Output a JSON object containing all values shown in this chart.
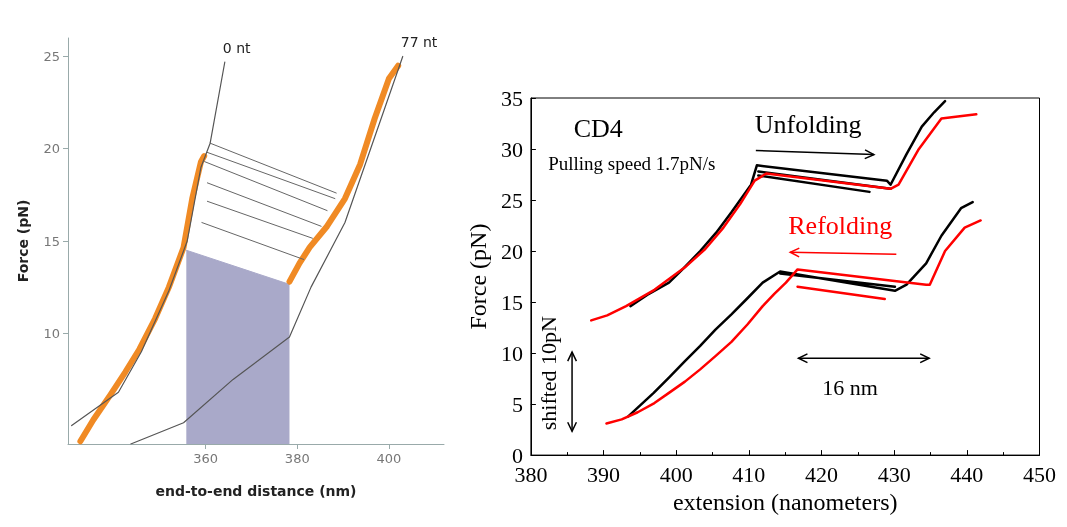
{
  "chart_data": [
    {
      "type": "line",
      "xlabel": "end-to-end distance (nm)",
      "ylabel": "Force (pN)",
      "xlim": [
        330,
        412
      ],
      "ylim": [
        4,
        26
      ],
      "xticks": [
        360,
        380,
        400
      ],
      "yticks": [
        10,
        15,
        20,
        25
      ],
      "grid": false,
      "legend": false,
      "series": [
        {
          "type": "area",
          "color": "#a9a9c9",
          "x": [
            355.8,
            378.3
          ],
          "values": [
            14.5,
            12.65
          ]
        },
        {
          "color": "#f08a24",
          "x": [
            332.7,
            335.5,
            339.2,
            342.5,
            345.6,
            349,
            352,
            355.2,
            357.1,
            359,
            359.7,
            null,
            378.3,
            380.5,
            382.7,
            386.5,
            390.4,
            393.7,
            396.9,
            400,
            402
          ],
          "values": [
            4.15,
            5.3,
            6.65,
            7.9,
            9.15,
            10.8,
            12.5,
            14.65,
            17.3,
            19.3,
            19.6,
            null,
            12.8,
            13.8,
            14.65,
            15.8,
            17.3,
            19.15,
            21.65,
            23.8,
            24.5
          ]
        },
        {
          "color": "#666666",
          "x": [
            361,
            388.5,
            null,
            360.4,
            388.2,
            null,
            359.8,
            386.5,
            null,
            360.4,
            385.2,
            null,
            360.4,
            383.3,
            null,
            359.2,
            381.4
          ],
          "values": [
            20.3,
            17.6,
            null,
            19.8,
            17.3,
            null,
            19.3,
            16.65,
            null,
            18.15,
            15.8,
            null,
            17.15,
            15.15,
            null,
            16,
            14
          ]
        },
        {
          "name": "0 nt",
          "color": "#555555",
          "x": [
            330.8,
            341,
            346,
            352,
            356,
            359,
            361,
            364.2
          ],
          "values": [
            5,
            6.8,
            9,
            12.3,
            15,
            19,
            20.3,
            24.7
          ]
        },
        {
          "name": "77 nt",
          "color": "#555555",
          "x": [
            343.7,
            355.2,
            366,
            378.3,
            383,
            390.4,
            396,
            403
          ],
          "values": [
            4,
            5.15,
            7.5,
            9.8,
            12.5,
            16,
            20,
            25
          ]
        }
      ]
    },
    {
      "type": "line",
      "xlabel": "extension (nanometers)",
      "ylabel": "Force (pN)",
      "xlim": [
        380,
        450
      ],
      "ylim": [
        0,
        35
      ],
      "xticks": [
        380,
        390,
        400,
        410,
        420,
        430,
        440,
        450
      ],
      "yticks": [
        0,
        5,
        10,
        15,
        20,
        25,
        30,
        35
      ],
      "grid": false,
      "legend": false,
      "annotations": [
        "CD4",
        "Pulling speed 1.7pN/s",
        "16 nm",
        "shifted 10pN"
      ],
      "series": [
        {
          "name": "Unfolding",
          "color": "#000000",
          "x": [
            393.7,
            396,
            399,
            401,
            403.3,
            405.5,
            407.6,
            409,
            410.3,
            411.1,
            429,
            429.5,
            431.7,
            433.8,
            435.5,
            437,
            null,
            411.3,
            429.5,
            null,
            411.3,
            426.6
          ],
          "values": [
            14.6,
            15.7,
            16.9,
            18.3,
            20,
            21.8,
            23.8,
            25.2,
            26.5,
            28.4,
            26.9,
            26.5,
            29.5,
            32.2,
            33.6,
            34.7,
            null,
            27.8,
            26.1,
            null,
            27.4,
            25.8
          ]
        },
        {
          "name": "Refolding",
          "color": "#ff0000",
          "x": [
            388.3,
            390.5,
            393.1,
            397,
            401.2,
            404,
            406.5,
            408.8,
            410.8,
            412.4,
            429.5,
            430.6,
            433.3,
            436.5,
            441.3
          ],
          "values": [
            13.2,
            13.7,
            14.6,
            16.2,
            18.4,
            20.2,
            22.3,
            24.6,
            26.9,
            27.6,
            26.1,
            26.5,
            29.9,
            33,
            33.4
          ]
        },
        {
          "color": "#000000",
          "x": [
            393.4,
            396.9,
            399,
            401.2,
            403.3,
            405.4,
            407.6,
            409.7,
            411.9,
            414.3,
            430.1,
            431.7,
            434.4,
            436.5,
            439.2,
            440.8,
            null,
            414.3,
            430.1
          ],
          "values": [
            3.8,
            6.1,
            7.6,
            9.2,
            10.7,
            12.3,
            13.8,
            15.3,
            16.9,
            18,
            16.1,
            16.7,
            18.8,
            21.5,
            24.2,
            24.8,
            null,
            17.8,
            16.5
          ]
        },
        {
          "color": "#ff0000",
          "x": [
            390.4,
            392.5,
            394.7,
            397,
            399,
            401.2,
            403.3,
            405.4,
            407.6,
            409.8,
            411.9,
            413.5,
            415.1,
            416.7,
            434.4,
            434.9,
            437,
            439.7,
            441.9,
            null,
            416.7,
            428.7
          ],
          "values": [
            3.1,
            3.5,
            4.2,
            5.1,
            6.1,
            7.2,
            8.4,
            9.7,
            11.1,
            12.8,
            14.6,
            15.8,
            16.9,
            18.2,
            16.7,
            16.7,
            20,
            22.3,
            23,
            null,
            16.5,
            15.3
          ]
        }
      ]
    }
  ]
}
